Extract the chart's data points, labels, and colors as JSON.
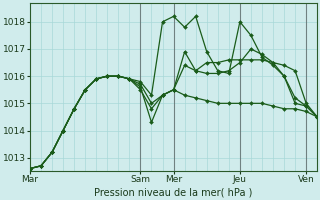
{
  "title": "Pression niveau de la mer( hPa )",
  "bg_color": "#d0ecec",
  "grid_color": "#a8d8d8",
  "line_color": "#1a5c1a",
  "ylim": [
    1012.5,
    1018.7
  ],
  "yticks": [
    1013,
    1014,
    1015,
    1016,
    1017,
    1018
  ],
  "xtick_labels": [
    "Mar",
    "Sam",
    "Mer",
    "Jeu",
    "Ven"
  ],
  "xtick_pos": [
    0,
    10,
    13,
    19,
    25
  ],
  "n_points": 27,
  "series": [
    [
      1012.6,
      1012.7,
      1013.2,
      1014.0,
      1014.8,
      1015.5,
      1015.9,
      1016.0,
      1016.0,
      1015.9,
      1015.8,
      1015.3,
      1018.0,
      1018.2,
      1017.8,
      1018.2,
      1016.9,
      1016.2,
      1016.1,
      1018.0,
      1017.5,
      1016.7,
      1016.4,
      1016.0,
      1015.0,
      1014.9,
      1014.5
    ],
    [
      1012.6,
      1012.7,
      1013.2,
      1014.0,
      1014.8,
      1015.5,
      1015.9,
      1016.0,
      1016.0,
      1015.9,
      1015.6,
      1014.3,
      1015.3,
      1015.5,
      1016.9,
      1016.2,
      1016.1,
      1016.1,
      1016.2,
      1016.5,
      1017.0,
      1016.8,
      1016.5,
      1016.0,
      1015.2,
      1014.9,
      1014.5
    ],
    [
      1012.6,
      1012.7,
      1013.2,
      1014.0,
      1014.8,
      1015.5,
      1015.9,
      1016.0,
      1016.0,
      1015.9,
      1015.5,
      1014.8,
      1015.3,
      1015.5,
      1015.3,
      1015.2,
      1015.1,
      1015.0,
      1015.0,
      1015.0,
      1015.0,
      1015.0,
      1014.9,
      1014.8,
      1014.8,
      1014.7,
      1014.5
    ],
    [
      1012.6,
      1012.7,
      1013.2,
      1014.0,
      1014.8,
      1015.5,
      1015.9,
      1016.0,
      1016.0,
      1015.9,
      1015.7,
      1015.0,
      1015.3,
      1015.5,
      1016.4,
      1016.2,
      1016.5,
      1016.5,
      1016.6,
      1016.6,
      1016.6,
      1016.6,
      1016.5,
      1016.4,
      1016.2,
      1015.0,
      1014.5
    ]
  ],
  "vline_positions": [
    10,
    13,
    19,
    25
  ],
  "vline_color": "#444444"
}
